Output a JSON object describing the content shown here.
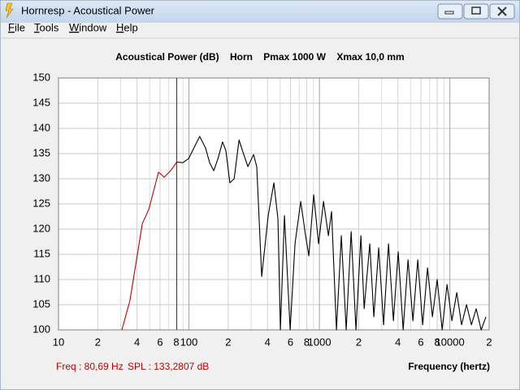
{
  "window": {
    "title": "Hornresp - Acoustical Power",
    "menu": [
      "File",
      "Tools",
      "Window",
      "Help"
    ]
  },
  "chart_data": {
    "type": "line",
    "title": "Acoustical Power (dB)    Horn    Pmax 1000 W    Xmax 10,0 mm",
    "xlabel": "Frequency (hertz)",
    "xscale": "log",
    "xlim": [
      10,
      20000
    ],
    "ylim": [
      100,
      150
    ],
    "xticks": [
      10,
      {
        "value": 20,
        "label": "2"
      },
      {
        "value": 40,
        "label": "4"
      },
      {
        "value": 60,
        "label": "6"
      },
      {
        "value": 80,
        "label": "8"
      },
      100,
      {
        "value": 200,
        "label": "2"
      },
      {
        "value": 400,
        "label": "4"
      },
      {
        "value": 600,
        "label": "6"
      },
      {
        "value": 800,
        "label": "8"
      },
      1000,
      {
        "value": 2000,
        "label": "2"
      },
      {
        "value": 4000,
        "label": "4"
      },
      {
        "value": 6000,
        "label": "6"
      },
      {
        "value": 8000,
        "label": "8"
      },
      10000,
      {
        "value": 20000,
        "label": "2"
      }
    ],
    "xminor": [
      30,
      50,
      70,
      90,
      300,
      500,
      700,
      900,
      3000,
      5000,
      7000,
      9000
    ],
    "yticks": [
      100,
      105,
      110,
      115,
      120,
      125,
      130,
      135,
      140,
      145,
      150
    ],
    "grid": true,
    "cursor_x": 80.69,
    "cursor_freq": "Freq : 80,69 Hz",
    "cursor_spl": "SPL : 133,2807 dB",
    "series": [
      {
        "color": "#c00000",
        "x": [
          30.6,
          35.3,
          43.9,
          49.2,
          58.4,
          64.6,
          72.4,
          80.69
        ],
        "values": [
          100,
          105.8,
          121.1,
          123.9,
          131.3,
          130.3,
          131.6,
          133.3
        ]
      },
      {
        "color": "#000000",
        "x": [
          80.69,
          89.8,
          99.5,
          111,
          121,
          134,
          144,
          155,
          167,
          181,
          192,
          206,
          222,
          242,
          263,
          283,
          313,
          331,
          361,
          405,
          448,
          481,
          502,
          540,
          597,
          650,
          719,
          784,
          830,
          904,
          985,
          1075,
          1172,
          1240,
          1351,
          1473,
          1606,
          1751,
          1907,
          2080,
          2203,
          2434,
          2614,
          2850,
          3105,
          3387,
          3692,
          4020,
          4385,
          4778,
          5210,
          5675,
          6185,
          6745,
          7345,
          8000,
          8730,
          9510,
          10370,
          11300,
          12300,
          13430,
          14630,
          15930,
          17380,
          18920
        ],
        "values": [
          133.3,
          133.2,
          134,
          136.5,
          138.4,
          136.1,
          133.2,
          131.6,
          134,
          137.3,
          135.6,
          129.2,
          130,
          137.7,
          134.8,
          132.4,
          134.8,
          132.4,
          110.6,
          122.7,
          129.2,
          122,
          100,
          122.7,
          100,
          117.1,
          125.5,
          118.7,
          114.7,
          126.8,
          117.1,
          125.5,
          118.7,
          123.5,
          100,
          118.7,
          100,
          119.5,
          100,
          118.7,
          104.2,
          117.1,
          102.6,
          116.3,
          101,
          117.1,
          101.8,
          115.5,
          100,
          113.9,
          101.8,
          113.9,
          101,
          112.3,
          102.6,
          110,
          100,
          109,
          101.8,
          107.4,
          101,
          105,
          101,
          104.2,
          100,
          102.6
        ]
      }
    ]
  }
}
